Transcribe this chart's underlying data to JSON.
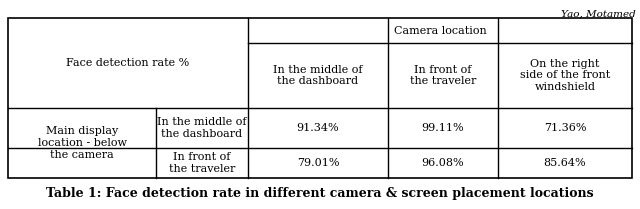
{
  "watermark": "Yao, Motamed",
  "caption": "Table 1: Face detection rate in different camera & screen placement locations",
  "header_left": "Face detection rate %",
  "header_camera": "Camera location",
  "col_headers": [
    "In the middle of\nthe dashboard",
    "In front of\nthe traveler",
    "On the right\nside of the front\nwindshield"
  ],
  "row_main_header": "Main display\nlocation - below\nthe camera",
  "row_sub_headers": [
    "In the middle of\nthe dashboard",
    "In front of\nthe traveler"
  ],
  "data": [
    [
      "91.34%",
      "99.11%",
      "71.36%"
    ],
    [
      "79.01%",
      "96.08%",
      "85.64%"
    ]
  ],
  "bg_color": "#ffffff",
  "text_color": "#000000",
  "border_color": "#000000",
  "font_size": 8.0,
  "caption_font_size": 9.0,
  "watermark_font_size": 7.5
}
